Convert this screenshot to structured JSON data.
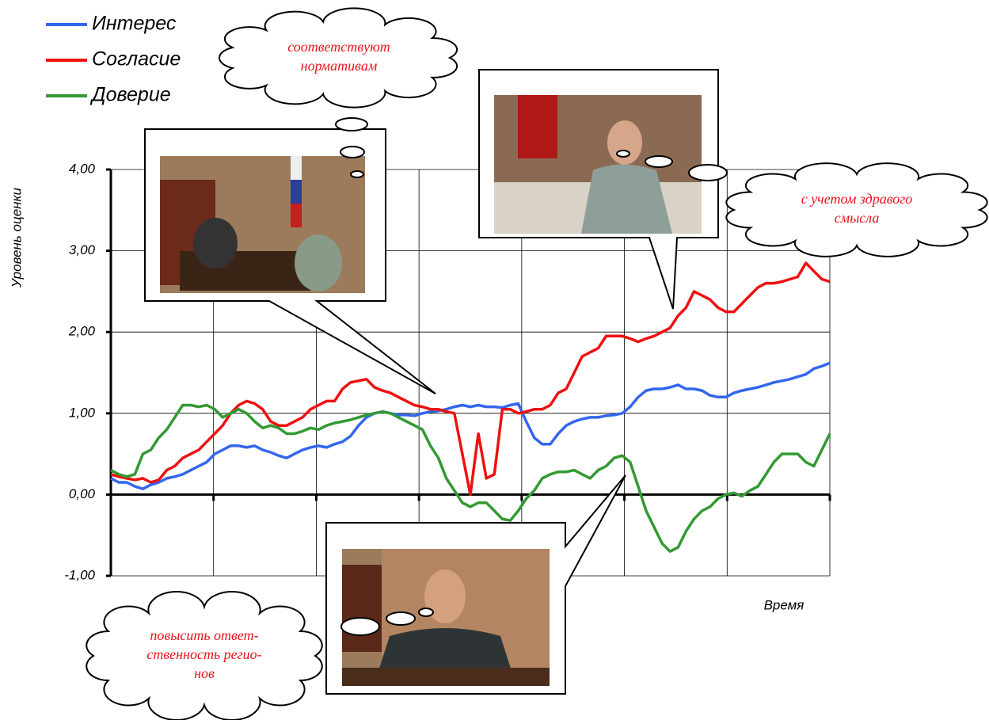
{
  "chart_data": {
    "type": "line",
    "y_label": "Уровень оценки",
    "x_label": "Время",
    "ylim": [
      -1,
      4
    ],
    "yticks": [
      {
        "value": 4,
        "label": "4,00"
      },
      {
        "value": 3,
        "label": "3,00"
      },
      {
        "value": 2,
        "label": "2,00"
      },
      {
        "value": 1,
        "label": "1,00"
      },
      {
        "value": 0,
        "label": "0,00"
      },
      {
        "value": -1,
        "label": "-1,00"
      }
    ],
    "grid": true,
    "legend": "top-left",
    "categories": [
      null,
      null,
      null,
      null,
      null,
      null,
      null,
      null,
      null,
      null,
      null,
      null,
      null,
      null,
      null,
      null,
      null,
      null,
      null,
      null,
      null,
      null,
      null,
      null,
      null,
      null,
      null,
      null,
      null,
      null,
      null,
      null,
      null,
      null,
      null,
      null,
      null,
      null,
      null,
      null,
      null,
      null,
      null,
      null,
      null,
      null,
      null,
      null,
      null,
      null,
      null,
      null,
      null,
      null,
      null,
      null,
      null,
      null,
      null,
      null,
      null,
      null,
      null,
      null,
      null,
      null,
      null,
      null,
      null,
      null,
      null,
      null,
      null,
      null,
      null,
      null,
      null,
      null,
      null,
      null,
      null,
      null,
      null,
      null,
      null,
      null,
      null,
      null,
      null,
      null,
      null
    ],
    "series": [
      {
        "name": "Интерес",
        "color": "#3366ee",
        "values": [
          0.2,
          0.15,
          0.15,
          0.1,
          0.07,
          0.12,
          0.15,
          0.2,
          0.22,
          0.25,
          0.3,
          0.35,
          0.4,
          0.5,
          0.55,
          0.6,
          0.6,
          0.58,
          0.6,
          0.55,
          0.52,
          0.48,
          0.45,
          0.5,
          0.55,
          0.58,
          0.6,
          0.58,
          0.62,
          0.65,
          0.72,
          0.85,
          0.95,
          1.0,
          1.02,
          1.0,
          0.98,
          0.98,
          0.97,
          1.0,
          1.02,
          1.03,
          1.05,
          1.08,
          1.1,
          1.08,
          1.1,
          1.08,
          1.08,
          1.07,
          1.1,
          1.12,
          0.9,
          0.7,
          0.62,
          0.62,
          0.75,
          0.85,
          0.9,
          0.93,
          0.95,
          0.95,
          0.97,
          0.98,
          1.0,
          1.08,
          1.2,
          1.28,
          1.3,
          1.3,
          1.32,
          1.35,
          1.3,
          1.3,
          1.28,
          1.22,
          1.2,
          1.2,
          1.25,
          1.28,
          1.3,
          1.32,
          1.35,
          1.38,
          1.4,
          1.42,
          1.45,
          1.48,
          1.55,
          1.58,
          1.62
        ]
      },
      {
        "name": "Согласие",
        "color": "#ee1111",
        "values": [
          0.25,
          0.22,
          0.2,
          0.18,
          0.2,
          0.15,
          0.18,
          0.3,
          0.35,
          0.45,
          0.5,
          0.55,
          0.65,
          0.75,
          0.85,
          1.0,
          1.1,
          1.15,
          1.12,
          1.05,
          0.9,
          0.85,
          0.85,
          0.9,
          0.95,
          1.05,
          1.1,
          1.15,
          1.15,
          1.3,
          1.38,
          1.4,
          1.42,
          1.32,
          1.28,
          1.25,
          1.2,
          1.15,
          1.1,
          1.08,
          1.05,
          1.05,
          1.02,
          1.0,
          0.5,
          0.0,
          0.75,
          0.2,
          0.25,
          1.05,
          1.05,
          1.0,
          1.02,
          1.05,
          1.05,
          1.1,
          1.25,
          1.3,
          1.5,
          1.7,
          1.75,
          1.8,
          1.95,
          1.95,
          1.95,
          1.92,
          1.88,
          1.92,
          1.95,
          2.0,
          2.05,
          2.2,
          2.3,
          2.5,
          2.45,
          2.4,
          2.3,
          2.25,
          2.25,
          2.35,
          2.45,
          2.55,
          2.6,
          2.6,
          2.62,
          2.65,
          2.68,
          2.85,
          2.75,
          2.65,
          2.62
        ]
      },
      {
        "name": "Доверие",
        "color": "#339933",
        "values": [
          0.3,
          0.25,
          0.22,
          0.25,
          0.5,
          0.55,
          0.7,
          0.8,
          0.95,
          1.1,
          1.1,
          1.08,
          1.1,
          1.05,
          0.95,
          1.0,
          1.05,
          1.0,
          0.9,
          0.82,
          0.85,
          0.82,
          0.75,
          0.75,
          0.78,
          0.82,
          0.8,
          0.85,
          0.88,
          0.9,
          0.92,
          0.95,
          0.98,
          1.0,
          1.02,
          1.0,
          0.95,
          0.9,
          0.85,
          0.8,
          0.6,
          0.45,
          0.2,
          0.05,
          -0.1,
          -0.15,
          -0.1,
          -0.1,
          -0.2,
          -0.3,
          -0.32,
          -0.2,
          -0.05,
          0.05,
          0.2,
          0.25,
          0.28,
          0.28,
          0.3,
          0.25,
          0.2,
          0.3,
          0.35,
          0.45,
          0.48,
          0.4,
          0.1,
          -0.2,
          -0.4,
          -0.6,
          -0.7,
          -0.65,
          -0.45,
          -0.3,
          -0.2,
          -0.15,
          -0.05,
          0.0,
          0.02,
          -0.02,
          0.05,
          0.1,
          0.25,
          0.4,
          0.5,
          0.5,
          0.5,
          0.4,
          0.35,
          0.55,
          0.75
        ]
      }
    ],
    "annotations": [
      {
        "lines": [
          "соответствуют",
          "нормативам"
        ]
      },
      {
        "lines": [
          "с учетом здравого",
          "смысла"
        ]
      },
      {
        "lines": [
          "повысить ответ-",
          "ственность регио-",
          "нов"
        ]
      }
    ]
  }
}
